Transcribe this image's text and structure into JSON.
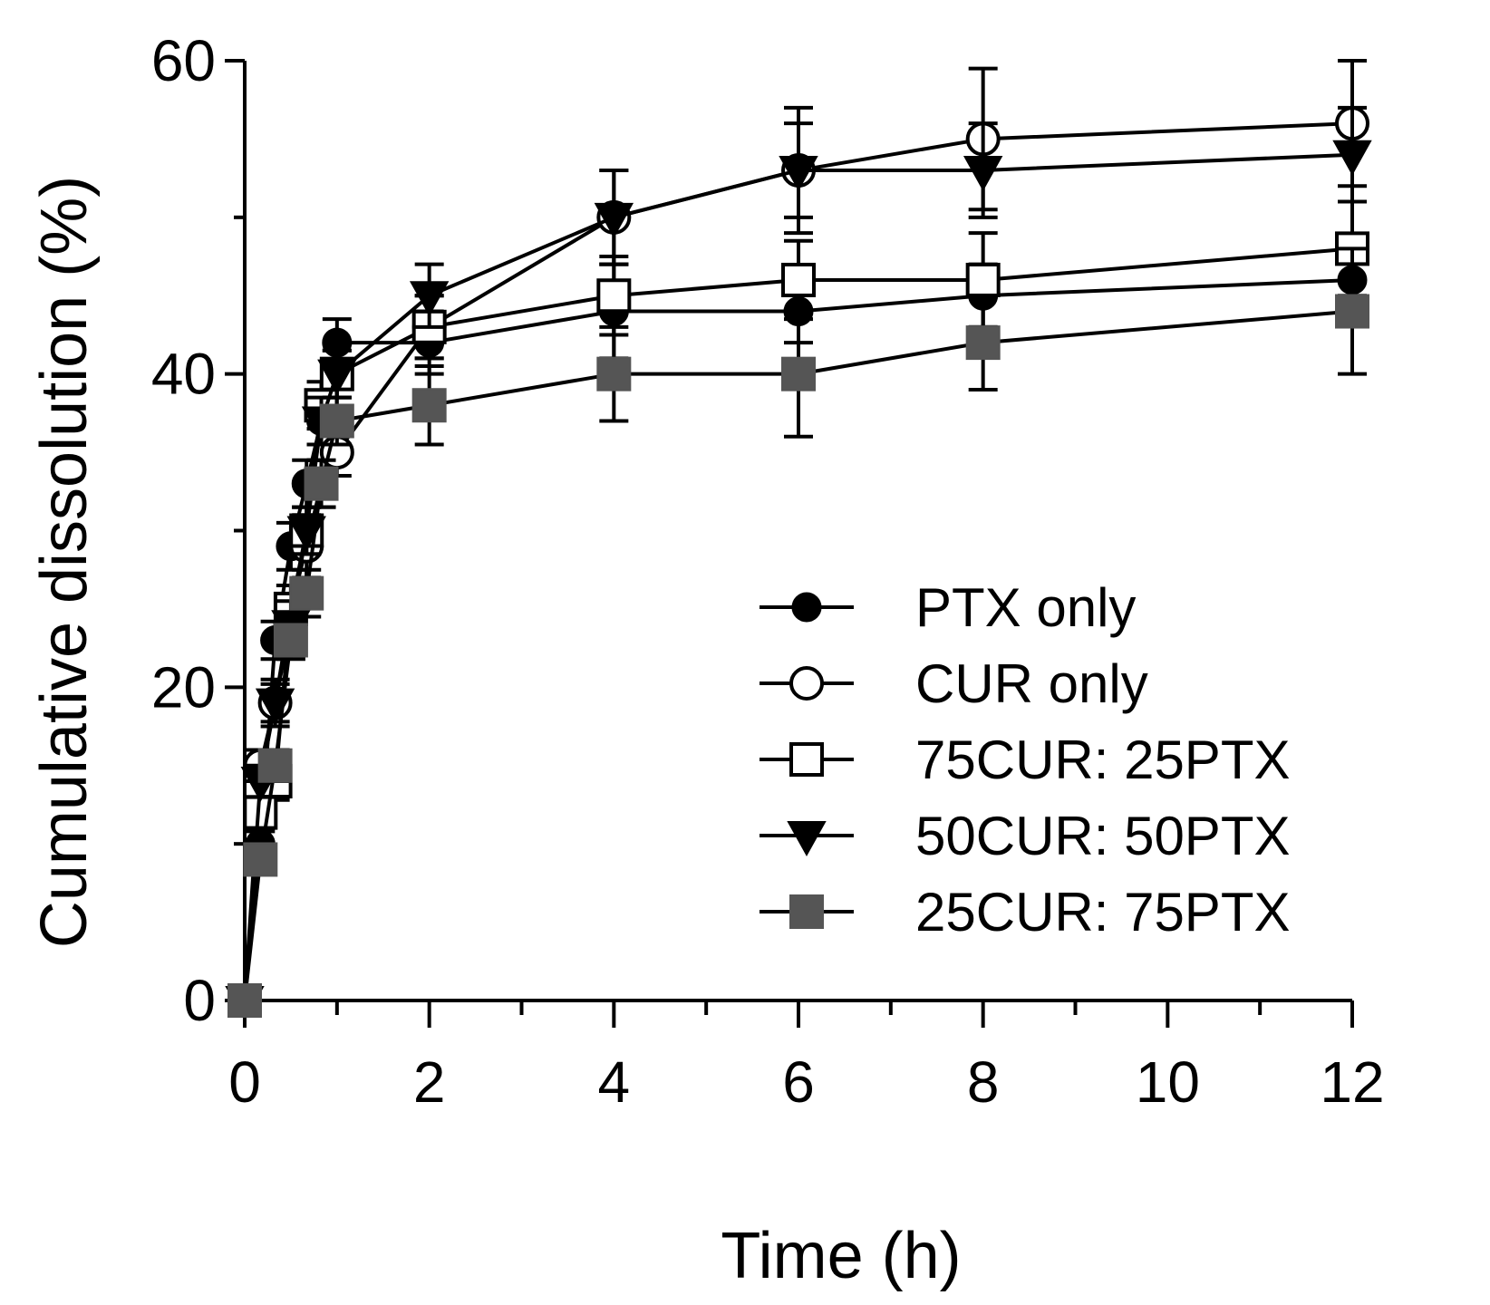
{
  "chart_data": {
    "type": "line",
    "title": "",
    "xlabel": "Time (h)",
    "ylabel": "Cumulative dissolution (%)",
    "xlim": [
      0,
      12
    ],
    "ylim": [
      0,
      60
    ],
    "x_ticks": [
      0,
      2,
      4,
      6,
      8,
      10,
      12
    ],
    "x_tick_labels": [
      "0",
      "2",
      "4",
      "6",
      "8",
      "10",
      "12"
    ],
    "x_minor_ticks": [
      1,
      3,
      5,
      7,
      9,
      11
    ],
    "y_ticks": [
      0,
      20,
      40,
      60
    ],
    "y_tick_labels": [
      "0",
      "20",
      "40",
      "60"
    ],
    "y_minor_ticks": [
      10,
      30,
      50
    ],
    "grid": false,
    "legend_position": "bottom-right",
    "x": [
      0,
      0.17,
      0.33,
      0.5,
      0.67,
      0.83,
      1,
      2,
      4,
      6,
      8,
      12
    ],
    "series": [
      {
        "name": "PTX only",
        "marker": "filled-circle",
        "color": "#000000",
        "values": [
          0,
          10,
          23,
          29,
          33,
          37,
          42,
          42,
          44,
          44,
          45,
          46
        ],
        "errors": [
          0,
          0.8,
          1.2,
          1.5,
          1.5,
          1.5,
          1.5,
          2,
          3,
          2,
          2,
          2
        ]
      },
      {
        "name": "CUR only",
        "marker": "open-circle",
        "color": "#000000",
        "values": [
          0,
          15,
          19,
          25,
          29,
          33,
          35,
          43,
          50,
          53,
          55,
          56
        ],
        "errors": [
          0,
          1,
          1.2,
          1.5,
          2,
          1.5,
          1.5,
          2,
          3,
          4,
          4.5,
          4
        ]
      },
      {
        "name": "75CUR: 25PTX",
        "marker": "open-square",
        "color": "#000000",
        "values": [
          0,
          12,
          14,
          25,
          30,
          38,
          40,
          43,
          45,
          46,
          46,
          48
        ],
        "errors": [
          0,
          1,
          1.2,
          1.5,
          1.5,
          1.5,
          1.5,
          2,
          2.5,
          2.5,
          3,
          3
        ]
      },
      {
        "name": "50CUR: 50PTX",
        "marker": "filled-triangle-down",
        "color": "#000000",
        "values": [
          0,
          14,
          19,
          24,
          30,
          37,
          40,
          45,
          50,
          53,
          53,
          54
        ],
        "errors": [
          0,
          1,
          1.5,
          1.5,
          1.5,
          1.5,
          1.5,
          2,
          3,
          3,
          3,
          3
        ]
      },
      {
        "name": "25CUR: 75PTX",
        "marker": "filled-square",
        "color": "#555555",
        "values": [
          0,
          9,
          15,
          23,
          26,
          33,
          37,
          38,
          40,
          40,
          42,
          44
        ],
        "errors": [
          0,
          0.8,
          1,
          1.2,
          1.5,
          1.5,
          1.5,
          2.5,
          3,
          4,
          3,
          4
        ]
      }
    ]
  }
}
